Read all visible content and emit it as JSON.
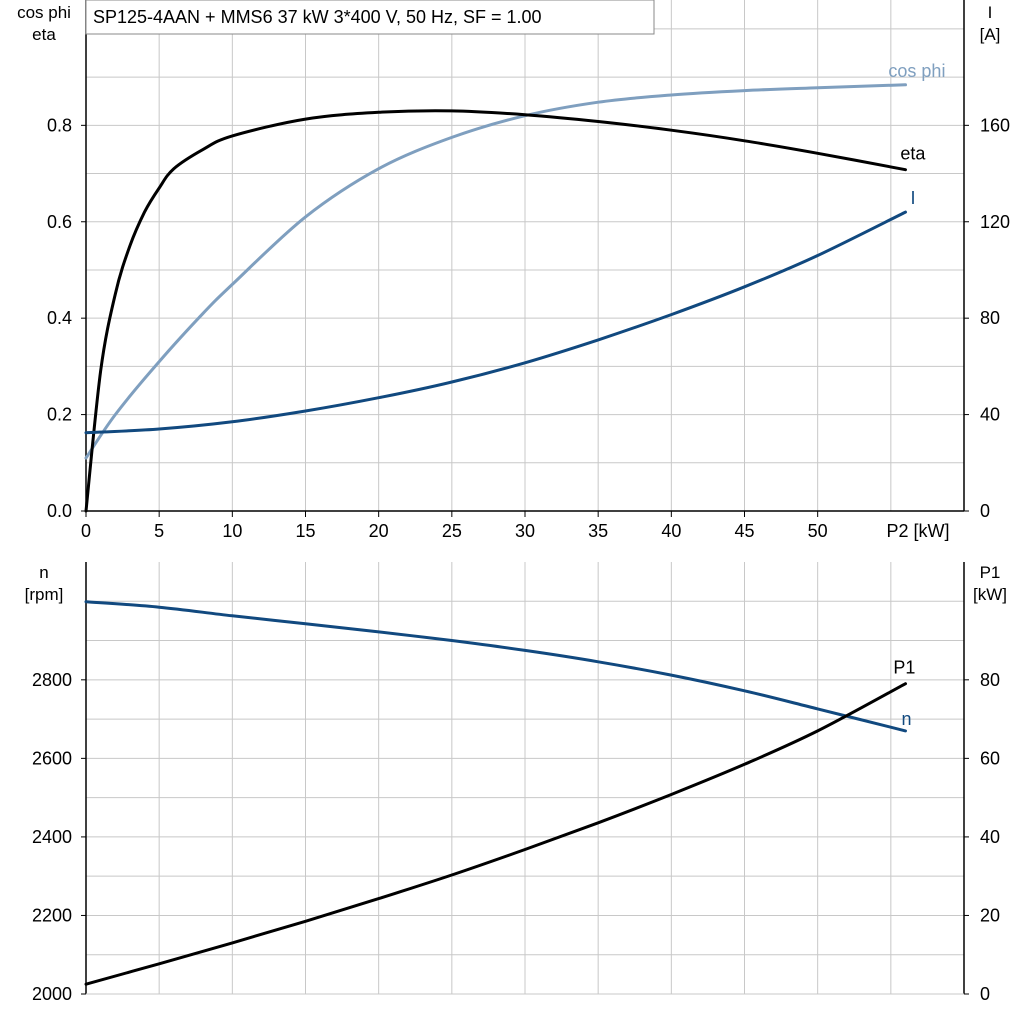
{
  "title": "SP125-4AAN + MMS6   37 kW   3*400 V, 50 Hz, SF = 1.00",
  "colors": {
    "eta": "#000000",
    "cos_phi": "#7f9fbf",
    "I": "#11497f",
    "n": "#11497f",
    "P1": "#000000",
    "grid": "#c8c8c8",
    "axis": "#000000"
  },
  "chart_data": [
    {
      "type": "line",
      "xlabel": "P2 [kW]",
      "x_ticks": [
        0,
        5,
        10,
        15,
        20,
        25,
        30,
        35,
        40,
        45,
        50
      ],
      "x_tick_labels": [
        "0",
        "5",
        "10",
        "15",
        "20",
        "25",
        "30",
        "35",
        "40",
        "45",
        "50"
      ],
      "xlim": [
        0,
        60
      ],
      "ylabel_left": [
        "cos phi",
        "eta"
      ],
      "ylim_left": [
        0,
        1.06
      ],
      "y_ticks_left": [
        0.0,
        0.2,
        0.4,
        0.6,
        0.8
      ],
      "y_tick_labels_left": [
        "0.0",
        "0.2",
        "0.4",
        "0.6",
        "0.8"
      ],
      "ylabel_right": [
        "I",
        "[A]"
      ],
      "ylim_right": [
        0,
        212
      ],
      "y_ticks_right": [
        0,
        40,
        80,
        120,
        160
      ],
      "y_tick_labels_right": [
        "0",
        "40",
        "80",
        "120",
        "160"
      ],
      "grid": true,
      "series": [
        {
          "name": "cos phi",
          "axis": "left",
          "color_key": "cos_phi",
          "x": [
            0,
            2,
            5,
            8,
            10,
            15,
            20,
            25,
            30,
            35,
            40,
            45,
            50,
            56
          ],
          "y": [
            0.11,
            0.2,
            0.31,
            0.41,
            0.47,
            0.61,
            0.71,
            0.775,
            0.82,
            0.848,
            0.863,
            0.872,
            0.878,
            0.884
          ]
        },
        {
          "name": "eta",
          "axis": "left",
          "color_key": "eta",
          "x": [
            0,
            1,
            2,
            3,
            4,
            5,
            6,
            8,
            10,
            15,
            20,
            25,
            30,
            35,
            40,
            45,
            50,
            56
          ],
          "y": [
            0.0,
            0.29,
            0.45,
            0.55,
            0.62,
            0.67,
            0.71,
            0.75,
            0.778,
            0.813,
            0.827,
            0.83,
            0.822,
            0.808,
            0.79,
            0.768,
            0.742,
            0.708
          ]
        },
        {
          "name": "I",
          "axis": "right",
          "color_key": "I",
          "x": [
            0,
            5,
            10,
            15,
            20,
            25,
            30,
            35,
            40,
            45,
            50,
            56
          ],
          "y": [
            32.5,
            34,
            37,
            41.5,
            47,
            53.5,
            61.5,
            71,
            81.5,
            93,
            106,
            124
          ]
        }
      ]
    },
    {
      "type": "line",
      "xlim": [
        0,
        60
      ],
      "ylabel_left": [
        "n",
        "[rpm]"
      ],
      "ylim_left": [
        2000,
        3100
      ],
      "y_ticks_left": [
        2000,
        2200,
        2400,
        2600,
        2800
      ],
      "y_tick_labels_left": [
        "2000",
        "2200",
        "2400",
        "2600",
        "2800"
      ],
      "ylabel_right": [
        "P1",
        "[kW]"
      ],
      "ylim_right": [
        0,
        110
      ],
      "y_ticks_right": [
        0,
        20,
        40,
        60,
        80
      ],
      "y_tick_labels_right": [
        "0",
        "20",
        "40",
        "60",
        "80"
      ],
      "grid": true,
      "series": [
        {
          "name": "n",
          "axis": "left",
          "color_key": "n",
          "x": [
            0,
            5,
            10,
            15,
            20,
            25,
            30,
            35,
            40,
            45,
            50,
            56
          ],
          "y": [
            2999,
            2985,
            2963,
            2943,
            2922,
            2900,
            2875,
            2846,
            2812,
            2772,
            2726,
            2670
          ]
        },
        {
          "name": "P1",
          "axis": "right",
          "color_key": "P1",
          "x": [
            0,
            5,
            10,
            15,
            20,
            25,
            30,
            35,
            40,
            45,
            50,
            56
          ],
          "y": [
            2.5,
            7.7,
            13,
            18.5,
            24.3,
            30.3,
            36.8,
            43.6,
            50.8,
            58.5,
            67,
            79
          ]
        }
      ]
    }
  ]
}
